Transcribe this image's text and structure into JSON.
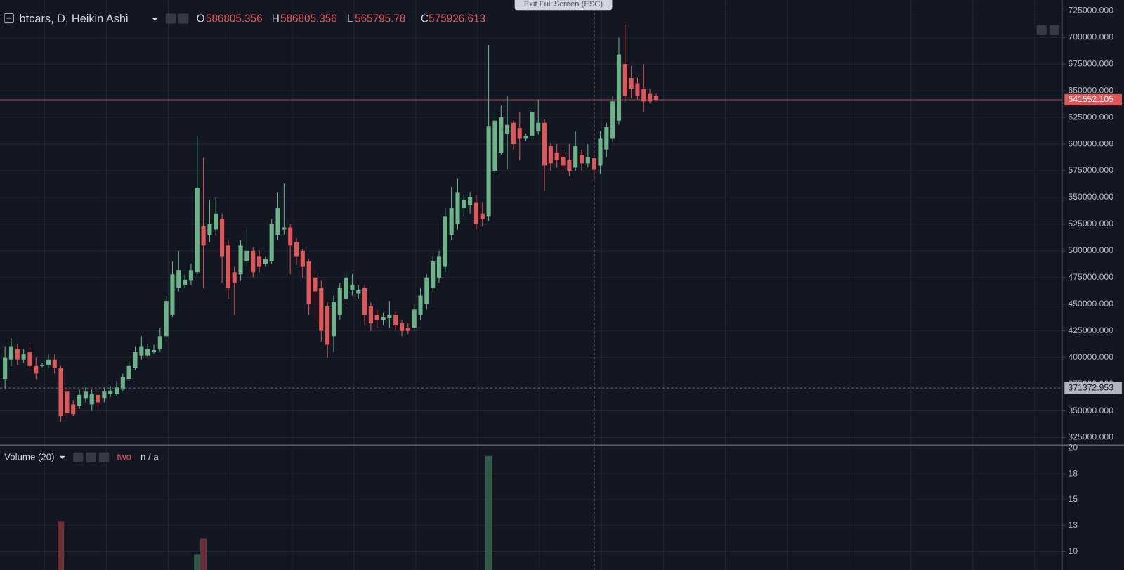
{
  "ui": {
    "exit_button": "Exit Full Screen (ESC)",
    "volume_argument": "two",
    "volume_value": "n / a"
  },
  "chart_data": [
    {
      "type": "candlestick",
      "title": "btcars, D, Heikin Ashi",
      "legend_labels": [
        "O",
        "H",
        "L",
        "C"
      ],
      "up_color": "#6cb38a",
      "down_color": "#e0575a",
      "open": [
        380000,
        398000,
        408000,
        398000,
        405000,
        392000,
        392000,
        393000,
        398000,
        390000,
        368000,
        356000,
        355000,
        362000,
        356000,
        365000,
        362000,
        366000,
        366000,
        370000,
        380000,
        390000,
        402000,
        402000,
        405000,
        408000,
        420000,
        440000,
        465000,
        468000,
        472000,
        480000,
        523000,
        515000,
        520000,
        530000,
        505000,
        480000,
        478000,
        490000,
        500000,
        495000,
        488000,
        490000,
        515000,
        520000,
        522000,
        508000,
        500000,
        490000,
        475000,
        465000,
        448000,
        420000,
        440000,
        455000,
        463000,
        460000,
        465000,
        448000,
        440000,
        435000,
        437000,
        440000,
        432000,
        428000,
        428000,
        440000,
        450000,
        465000,
        475000,
        485000,
        515000,
        525000,
        540000,
        543000,
        545000,
        535000,
        532000,
        575000,
        592000,
        610000,
        620000,
        615000,
        605000,
        608000,
        612000,
        620000,
        598000,
        592000,
        588000,
        585000,
        578000,
        590000,
        582000,
        586805.356,
        580000,
        595000,
        605000,
        622000,
        675000,
        662000,
        657000,
        652000,
        647000,
        645000
      ],
      "high": [
        410000,
        418000,
        413000,
        408000,
        412000,
        400000,
        395000,
        403000,
        403000,
        392000,
        373000,
        360000,
        370000,
        372000,
        370000,
        368000,
        372000,
        373000,
        378000,
        385000,
        397000,
        410000,
        420000,
        413000,
        412000,
        428000,
        458000,
        490000,
        500000,
        478000,
        488000,
        608000,
        587000,
        548000,
        550000,
        535000,
        510000,
        485000,
        510000,
        520000,
        503000,
        500000,
        495000,
        530000,
        555000,
        563000,
        525000,
        512000,
        502000,
        492000,
        480000,
        472000,
        452000,
        458000,
        470000,
        482000,
        478000,
        468000,
        468000,
        452000,
        445000,
        442000,
        453000,
        443000,
        435000,
        432000,
        450000,
        465000,
        478000,
        495000,
        500000,
        540000,
        560000,
        568000,
        553000,
        555000,
        552000,
        545000,
        693000,
        630000,
        636000,
        645000,
        622000,
        630000,
        610000,
        632000,
        642000,
        623000,
        601000,
        600000,
        595000,
        600000,
        612000,
        595000,
        600000,
        586805.356,
        612000,
        620000,
        645000,
        700000,
        712000,
        673000,
        662000,
        675000,
        652000,
        647000
      ],
      "low": [
        370000,
        392000,
        393000,
        395000,
        388000,
        380000,
        391000,
        390000,
        385000,
        340000,
        343000,
        345000,
        352000,
        358000,
        350000,
        352000,
        358000,
        363000,
        364000,
        368000,
        378000,
        388000,
        398000,
        400000,
        403000,
        405000,
        418000,
        438000,
        462000,
        465000,
        468000,
        478000,
        465000,
        508000,
        515000,
        470000,
        455000,
        440000,
        472000,
        485000,
        475000,
        480000,
        485000,
        488000,
        510000,
        515000,
        478000,
        487000,
        475000,
        440000,
        432000,
        415000,
        400000,
        405000,
        435000,
        450000,
        458000,
        455000,
        430000,
        425000,
        428000,
        430000,
        428000,
        425000,
        420000,
        422000,
        425000,
        435000,
        445000,
        462000,
        470000,
        480000,
        510000,
        520000,
        532000,
        535000,
        520000,
        523000,
        528000,
        570000,
        590000,
        576000,
        595000,
        585000,
        603000,
        605000,
        609000,
        556000,
        575000,
        578000,
        572000,
        570000,
        575000,
        575000,
        578000,
        565795.78,
        572000,
        588000,
        602000,
        618000,
        640000,
        643000,
        642000,
        630000,
        638000,
        640000
      ],
      "close": [
        400000,
        410000,
        398000,
        403000,
        392000,
        385000,
        393000,
        398000,
        390000,
        345000,
        348000,
        347000,
        365000,
        368000,
        366000,
        358000,
        368000,
        369000,
        372000,
        382000,
        392000,
        405000,
        410000,
        408000,
        407000,
        420000,
        453000,
        478000,
        482000,
        473000,
        482000,
        559000,
        505000,
        525000,
        535000,
        495000,
        465000,
        470000,
        505000,
        500000,
        480000,
        485000,
        492000,
        525000,
        540000,
        522000,
        505000,
        495000,
        485000,
        450000,
        462000,
        425000,
        412000,
        452000,
        465000,
        475000,
        468000,
        463000,
        440000,
        432000,
        435000,
        438000,
        440000,
        430000,
        425000,
        425000,
        445000,
        458000,
        475000,
        490000,
        495000,
        532000,
        540000,
        555000,
        548000,
        550000,
        525000,
        530000,
        617000,
        622000,
        625000,
        618000,
        600000,
        605000,
        608000,
        630000,
        620000,
        580000,
        582000,
        585000,
        580000,
        575000,
        598000,
        582000,
        588000,
        575926.613,
        605000,
        616000,
        640000,
        684000,
        645000,
        652000,
        645000,
        640000,
        640000,
        641552.105
      ],
      "marker_price": 371372.953,
      "ylim": [
        318440,
        735080
      ],
      "yticks": [
        {
          "value": 725000,
          "label": "725000.000"
        },
        {
          "value": 700000,
          "label": "700000.000"
        },
        {
          "value": 675000,
          "label": "675000.000"
        },
        {
          "value": 650000,
          "label": "650000.000"
        },
        {
          "value": 625000,
          "label": "625000.000"
        },
        {
          "value": 600000,
          "label": "600000.000"
        },
        {
          "value": 575000,
          "label": "575000.000"
        },
        {
          "value": 550000,
          "label": "550000.000"
        },
        {
          "value": 525000,
          "label": "525000.000"
        },
        {
          "value": 500000,
          "label": "500000.000"
        },
        {
          "value": 475000,
          "label": "475000.000"
        },
        {
          "value": 450000,
          "label": "450000.000"
        },
        {
          "value": 425000,
          "label": "425000.000"
        },
        {
          "value": 400000,
          "label": "400000.000"
        },
        {
          "value": 375000,
          "label": "375000.000"
        },
        {
          "value": 350000,
          "label": "350000.000"
        },
        {
          "value": 325000,
          "label": "325000.000"
        }
      ],
      "grid": true
    },
    {
      "type": "bar",
      "title": "Volume (20)",
      "up_color": "#2f5a46",
      "down_color": "#6b2f33",
      "values": [
        null,
        null,
        null,
        null,
        null,
        null,
        null,
        null,
        null,
        12.9,
        null,
        null,
        null,
        null,
        null,
        null,
        null,
        null,
        null,
        null,
        null,
        null,
        null,
        null,
        null,
        null,
        null,
        null,
        null,
        null,
        null,
        9.7,
        11.2,
        null,
        null,
        null,
        null,
        null,
        null,
        null,
        null,
        null,
        null,
        null,
        null,
        null,
        null,
        null,
        null,
        null,
        null,
        null,
        null,
        null,
        null,
        null,
        null,
        null,
        null,
        null,
        null,
        null,
        null,
        null,
        null,
        null,
        null,
        null,
        null,
        null,
        null,
        null,
        null,
        null,
        null,
        null,
        null,
        null,
        19.2,
        null,
        null,
        null,
        null,
        null,
        null,
        null,
        null,
        null,
        null,
        null,
        null,
        null,
        null,
        null,
        null,
        null,
        null,
        null,
        null,
        null,
        null,
        null,
        null,
        null,
        null,
        null
      ],
      "ylim": [
        8.2,
        20.2
      ],
      "yticks": [
        20,
        {
          "value": 17.5,
          "label": "18"
        },
        15,
        {
          "value": 12.5,
          "label": "13"
        },
        10
      ],
      "grid": true
    }
  ]
}
